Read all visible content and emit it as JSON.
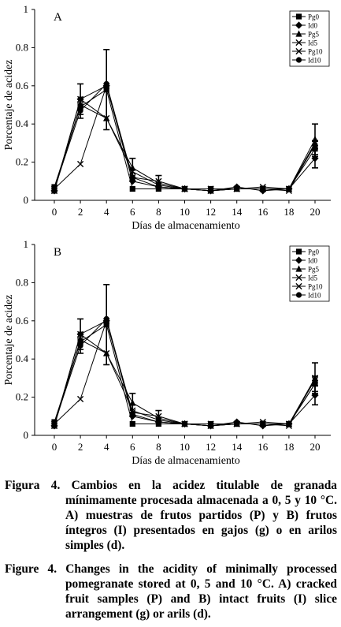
{
  "chart_data": [
    {
      "type": "line",
      "panel_label": "A",
      "xlabel": "Días de almacenamiento",
      "ylabel": "Porcentaje de acidez",
      "x": [
        0,
        2,
        4,
        6,
        8,
        10,
        12,
        14,
        16,
        18,
        20
      ],
      "x_ticks": [
        "0",
        "2",
        "4",
        "6",
        "8",
        "10",
        "12",
        "14",
        "16",
        "18",
        "20"
      ],
      "y_ticks": [
        "0",
        "0.2",
        "0.4",
        "0.6",
        "0.8",
        "1"
      ],
      "ylim": [
        0,
        1
      ],
      "legend_position": "top-right",
      "series": [
        {
          "name": "Pg0",
          "marker": "square",
          "values": [
            0.07,
            0.49,
            0.58,
            0.06,
            0.06,
            0.06,
            0.06,
            0.06,
            0.06,
            0.06,
            0.27
          ],
          "err": [
            0,
            0,
            0.21,
            0,
            0,
            0,
            0,
            0,
            0,
            0,
            0.04
          ]
        },
        {
          "name": "Id0",
          "marker": "diamond",
          "values": [
            0.05,
            0.53,
            0.6,
            0.1,
            0.07,
            0.06,
            0.05,
            0.07,
            0.05,
            0.06,
            0.22
          ],
          "err": [
            0,
            0,
            0,
            0,
            0,
            0,
            0,
            0,
            0,
            0,
            0.05
          ]
        },
        {
          "name": "Pg5",
          "marker": "triangle",
          "values": [
            0.05,
            0.5,
            0.43,
            0.17,
            0.09,
            0.06,
            0.05,
            0.06,
            0.06,
            0.06,
            0.32
          ],
          "err": [
            0,
            0,
            0,
            0.05,
            0,
            0,
            0,
            0,
            0,
            0,
            0.08
          ]
        },
        {
          "name": "Id5",
          "marker": "x",
          "values": [
            0.06,
            0.19,
            0.6,
            0.12,
            0.1,
            0.06,
            0.05,
            0.06,
            0.06,
            0.05,
            0.3
          ],
          "err": [
            0,
            0,
            0,
            0,
            0.03,
            0,
            0,
            0,
            0,
            0,
            0
          ]
        },
        {
          "name": "Pg10",
          "marker": "x",
          "values": [
            0.05,
            0.53,
            0.43,
            0.15,
            0.08,
            0.06,
            0.06,
            0.06,
            0.07,
            0.06,
            0.3
          ],
          "err": [
            0,
            0.08,
            0,
            0,
            0,
            0,
            0,
            0,
            0,
            0,
            0
          ]
        },
        {
          "name": "Id10",
          "marker": "circle",
          "values": [
            0.06,
            0.47,
            0.61,
            0.12,
            0.07,
            0.06,
            0.05,
            0.06,
            0.06,
            0.06,
            0.29
          ],
          "err": [
            0,
            0.04,
            0,
            0,
            0,
            0,
            0,
            0,
            0,
            0,
            0
          ]
        }
      ]
    },
    {
      "type": "line",
      "panel_label": "B",
      "xlabel": "Días de almacenamiento",
      "ylabel": "Porcentaje de acidez",
      "x": [
        0,
        2,
        4,
        6,
        8,
        10,
        12,
        14,
        16,
        18,
        20
      ],
      "x_ticks": [
        "0",
        "2",
        "4",
        "6",
        "8",
        "10",
        "12",
        "14",
        "16",
        "18",
        "20"
      ],
      "y_ticks": [
        "0",
        "0.2",
        "0.4",
        "0.6",
        "0.8",
        "1"
      ],
      "ylim": [
        0,
        1
      ],
      "legend_position": "top-right",
      "series": [
        {
          "name": "Pg0",
          "marker": "square",
          "values": [
            0.07,
            0.49,
            0.58,
            0.06,
            0.06,
            0.06,
            0.06,
            0.06,
            0.06,
            0.06,
            0.27
          ],
          "err": [
            0,
            0,
            0.21,
            0,
            0,
            0,
            0,
            0,
            0,
            0,
            0.04
          ]
        },
        {
          "name": "Id0",
          "marker": "diamond",
          "values": [
            0.05,
            0.53,
            0.6,
            0.1,
            0.07,
            0.06,
            0.05,
            0.07,
            0.05,
            0.06,
            0.21
          ],
          "err": [
            0,
            0,
            0,
            0,
            0,
            0,
            0,
            0,
            0,
            0,
            0.05
          ]
        },
        {
          "name": "Pg5",
          "marker": "triangle",
          "values": [
            0.05,
            0.5,
            0.43,
            0.17,
            0.09,
            0.06,
            0.05,
            0.06,
            0.06,
            0.06,
            0.3
          ],
          "err": [
            0,
            0,
            0,
            0.05,
            0,
            0,
            0,
            0,
            0,
            0,
            0.08
          ]
        },
        {
          "name": "Id5",
          "marker": "x",
          "values": [
            0.06,
            0.19,
            0.6,
            0.12,
            0.1,
            0.06,
            0.05,
            0.06,
            0.06,
            0.05,
            0.3
          ],
          "err": [
            0,
            0,
            0,
            0,
            0.03,
            0,
            0,
            0,
            0,
            0,
            0
          ]
        },
        {
          "name": "Pg10",
          "marker": "x",
          "values": [
            0.05,
            0.53,
            0.43,
            0.13,
            0.08,
            0.06,
            0.06,
            0.06,
            0.07,
            0.06,
            0.29
          ],
          "err": [
            0,
            0.08,
            0,
            0,
            0,
            0,
            0,
            0,
            0,
            0,
            0
          ]
        },
        {
          "name": "Id10",
          "marker": "circle",
          "values": [
            0.06,
            0.47,
            0.61,
            0.11,
            0.07,
            0.06,
            0.05,
            0.06,
            0.06,
            0.06,
            0.27
          ],
          "err": [
            0,
            0.04,
            0,
            0,
            0,
            0,
            0,
            0,
            0,
            0,
            0
          ]
        }
      ]
    }
  ],
  "captions": {
    "es_label": "Figura 4.",
    "es_text": "Cambios en la acidez titulable de granada mínimamente procesada almacenada a 0, 5 y 10 °C. A) muestras de frutos partidos (P) y B) frutos íntegros (I) presentados en gajos (g) o en arilos simples (d).",
    "en_label": "Figure 4.",
    "en_text": "Changes in the acidity of minimally processed pomegranate stored at 0, 5 and 10 °C. A) cracked fruit samples (P) and B) intact fruits (I) slice arrangement (g) or arils (d)."
  }
}
